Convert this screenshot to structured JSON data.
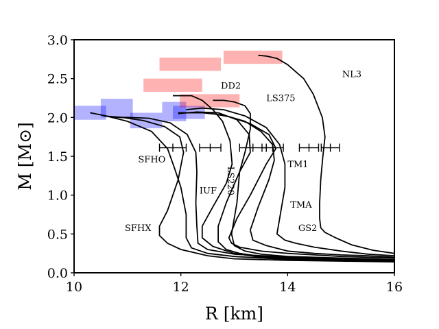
{
  "chart_data": {
    "type": "line",
    "title": "",
    "xlabel": "R [km]",
    "ylabel": "M [M⊙]",
    "xlim": [
      10,
      16
    ],
    "ylim": [
      0.0,
      3.0
    ],
    "x_ticks": [
      10,
      12,
      14,
      16
    ],
    "x_tick_labels": [
      "10",
      "12",
      "14",
      "16"
    ],
    "y_ticks": [
      0.0,
      0.5,
      1.0,
      1.5,
      2.0,
      2.5,
      3.0
    ],
    "y_tick_labels": [
      "0.0",
      "0.5",
      "1.0",
      "1.5",
      "2.0",
      "2.5",
      "3.0"
    ],
    "grid": false,
    "series": [
      {
        "name": "NL3",
        "label_pos": [
          15.02,
          2.52
        ],
        "label_rot": 0,
        "points": [
          [
            16.0,
            0.25
          ],
          [
            15.6,
            0.29
          ],
          [
            15.2,
            0.36
          ],
          [
            14.9,
            0.45
          ],
          [
            14.7,
            0.52
          ],
          [
            14.62,
            0.58
          ],
          [
            14.6,
            0.7
          ],
          [
            14.6,
            0.9
          ],
          [
            14.62,
            1.2
          ],
          [
            14.66,
            1.5
          ],
          [
            14.7,
            1.75
          ],
          [
            14.65,
            2.0
          ],
          [
            14.48,
            2.3
          ],
          [
            14.3,
            2.5
          ],
          [
            14.0,
            2.68
          ],
          [
            13.8,
            2.76
          ],
          [
            13.6,
            2.79
          ],
          [
            13.45,
            2.8
          ]
        ]
      },
      {
        "name": "GS2",
        "label_pos": [
          14.2,
          0.54
        ],
        "label_rot": 0,
        "points": [
          [
            16.0,
            0.22
          ],
          [
            15.5,
            0.24
          ],
          [
            15.0,
            0.28
          ],
          [
            14.5,
            0.33
          ],
          [
            14.15,
            0.38
          ],
          [
            13.95,
            0.42
          ],
          [
            13.8,
            0.5
          ],
          [
            13.85,
            0.7
          ],
          [
            13.95,
            1.1
          ],
          [
            13.95,
            1.4
          ],
          [
            13.85,
            1.65
          ],
          [
            13.6,
            1.87
          ],
          [
            13.2,
            2.02
          ],
          [
            12.8,
            2.1
          ],
          [
            12.4,
            2.12
          ],
          [
            12.1,
            2.1
          ]
        ]
      },
      {
        "name": "TMA",
        "label_pos": [
          14.05,
          0.84
        ],
        "label_rot": 0,
        "points": [
          [
            16.0,
            0.2
          ],
          [
            15.5,
            0.22
          ],
          [
            15.0,
            0.23
          ],
          [
            14.5,
            0.25
          ],
          [
            14.0,
            0.28
          ],
          [
            13.6,
            0.35
          ],
          [
            13.35,
            0.42
          ],
          [
            13.3,
            0.55
          ],
          [
            13.45,
            0.85
          ],
          [
            13.65,
            1.2
          ],
          [
            13.75,
            1.45
          ],
          [
            13.72,
            1.65
          ],
          [
            13.5,
            1.82
          ],
          [
            13.2,
            1.95
          ],
          [
            12.8,
            2.03
          ],
          [
            12.4,
            2.06
          ],
          [
            11.95,
            2.06
          ]
        ]
      },
      {
        "name": "TM1",
        "label_pos": [
          14.0,
          1.36
        ],
        "label_rot": 0,
        "points": [
          [
            16.0,
            0.19
          ],
          [
            15.5,
            0.2
          ],
          [
            15.0,
            0.21
          ],
          [
            14.5,
            0.23
          ],
          [
            14.0,
            0.25
          ],
          [
            13.5,
            0.28
          ],
          [
            13.1,
            0.33
          ],
          [
            12.95,
            0.38
          ],
          [
            12.9,
            0.45
          ],
          [
            13.05,
            0.7
          ],
          [
            13.3,
            1.0
          ],
          [
            13.6,
            1.4
          ],
          [
            13.78,
            1.6
          ],
          [
            13.65,
            1.78
          ],
          [
            13.3,
            1.92
          ],
          [
            12.9,
            2.01
          ],
          [
            12.5,
            2.06
          ],
          [
            12.1,
            2.06
          ]
        ]
      },
      {
        "name": "LS375",
        "label_pos": [
          13.6,
          2.21
        ],
        "label_rot": 0,
        "points": [
          [
            16.0,
            0.17
          ],
          [
            15.0,
            0.19
          ],
          [
            14.0,
            0.21
          ],
          [
            13.5,
            0.24
          ],
          [
            13.2,
            0.28
          ],
          [
            13.0,
            0.35
          ],
          [
            12.95,
            0.5
          ],
          [
            13.05,
            0.9
          ],
          [
            13.1,
            1.3
          ],
          [
            13.2,
            1.55
          ],
          [
            13.3,
            1.85
          ],
          [
            13.3,
            2.05
          ],
          [
            13.2,
            2.15
          ],
          [
            13.0,
            2.2
          ],
          [
            12.8,
            2.22
          ],
          [
            12.6,
            2.22
          ]
        ]
      },
      {
        "name": "DD2",
        "label_pos": [
          12.75,
          2.37
        ],
        "label_rot": 0,
        "points": [
          [
            16.0,
            0.15
          ],
          [
            15.0,
            0.16
          ],
          [
            14.0,
            0.18
          ],
          [
            13.5,
            0.2
          ],
          [
            13.0,
            0.25
          ],
          [
            12.6,
            0.34
          ],
          [
            12.4,
            0.45
          ],
          [
            12.4,
            0.6
          ],
          [
            12.6,
            0.85
          ],
          [
            12.85,
            1.15
          ],
          [
            12.96,
            1.4
          ],
          [
            12.92,
            1.7
          ],
          [
            12.78,
            1.95
          ],
          [
            12.6,
            2.1
          ],
          [
            12.4,
            2.22
          ],
          [
            12.2,
            2.28
          ],
          [
            12.0,
            2.28
          ],
          [
            11.85,
            2.28
          ]
        ]
      },
      {
        "name": "LS220",
        "label_pos": [
          12.88,
          1.37
        ],
        "label_rot": 90,
        "points": [
          [
            16.0,
            0.16
          ],
          [
            15.0,
            0.17
          ],
          [
            14.0,
            0.19
          ],
          [
            13.5,
            0.21
          ],
          [
            13.1,
            0.25
          ],
          [
            12.85,
            0.3
          ],
          [
            12.7,
            0.4
          ],
          [
            12.7,
            0.6
          ],
          [
            12.85,
            0.9
          ],
          [
            13.1,
            1.3
          ],
          [
            13.3,
            1.55
          ],
          [
            13.28,
            1.78
          ],
          [
            13.05,
            1.97
          ],
          [
            12.7,
            2.06
          ],
          [
            12.3,
            2.07
          ],
          [
            11.95,
            2.05
          ]
        ]
      },
      {
        "name": "IUF",
        "label_pos": [
          12.35,
          1.02
        ],
        "label_rot": 0,
        "points": [
          [
            16.0,
            0.17
          ],
          [
            15.0,
            0.18
          ],
          [
            14.0,
            0.2
          ],
          [
            13.0,
            0.24
          ],
          [
            12.5,
            0.3
          ],
          [
            12.32,
            0.38
          ],
          [
            12.3,
            0.6
          ],
          [
            12.28,
            0.9
          ],
          [
            12.3,
            1.3
          ],
          [
            12.28,
            1.55
          ],
          [
            12.12,
            1.78
          ],
          [
            11.8,
            1.93
          ],
          [
            11.4,
            1.99
          ],
          [
            11.0,
            2.0
          ],
          [
            10.7,
            2.0
          ]
        ]
      },
      {
        "name": "SFHO",
        "label_pos": [
          11.2,
          1.42
        ],
        "label_rot": 0,
        "points": [
          [
            16.0,
            0.15
          ],
          [
            15.0,
            0.16
          ],
          [
            14.0,
            0.17
          ],
          [
            13.0,
            0.21
          ],
          [
            12.5,
            0.25
          ],
          [
            12.2,
            0.32
          ],
          [
            12.1,
            0.45
          ],
          [
            12.1,
            0.75
          ],
          [
            12.0,
            1.1
          ],
          [
            11.88,
            1.35
          ],
          [
            11.75,
            1.6
          ],
          [
            11.45,
            1.82
          ],
          [
            11.0,
            1.95
          ],
          [
            10.6,
            2.02
          ],
          [
            10.3,
            2.06
          ]
        ]
      },
      {
        "name": "SFHX",
        "label_pos": [
          10.95,
          0.54
        ],
        "label_rot": 0,
        "points": [
          [
            16.0,
            0.14
          ],
          [
            15.0,
            0.15
          ],
          [
            14.0,
            0.16
          ],
          [
            13.0,
            0.18
          ],
          [
            12.5,
            0.22
          ],
          [
            12.0,
            0.3
          ],
          [
            11.75,
            0.38
          ],
          [
            11.6,
            0.48
          ],
          [
            11.6,
            0.6
          ],
          [
            11.75,
            0.8
          ],
          [
            11.95,
            1.2
          ],
          [
            12.05,
            1.55
          ],
          [
            11.98,
            1.75
          ],
          [
            11.7,
            1.88
          ],
          [
            11.3,
            1.96
          ],
          [
            10.9,
            2.0
          ],
          [
            10.55,
            2.02
          ]
        ]
      }
    ],
    "shaded_regions": [
      {
        "color": "#0000ff",
        "x": [
          10.0,
          10.6
        ],
        "y": [
          1.97,
          2.15
        ]
      },
      {
        "color": "#0000ff",
        "x": [
          10.5,
          11.1
        ],
        "y": [
          2.0,
          2.24
        ]
      },
      {
        "color": "#0000ff",
        "x": [
          11.05,
          11.65
        ],
        "y": [
          1.86,
          2.06
        ]
      },
      {
        "color": "#0000ff",
        "x": [
          11.65,
          12.1
        ],
        "y": [
          1.95,
          2.2
        ]
      },
      {
        "color": "#0000ff",
        "x": [
          11.85,
          12.45
        ],
        "y": [
          1.98,
          2.15
        ]
      },
      {
        "color": "#ff0000",
        "x": [
          11.6,
          12.75
        ],
        "y": [
          2.6,
          2.77
        ]
      },
      {
        "color": "#ff0000",
        "x": [
          12.8,
          13.9
        ],
        "y": [
          2.69,
          2.86
        ]
      },
      {
        "color": "#ff0000",
        "x": [
          11.3,
          12.4
        ],
        "y": [
          2.33,
          2.5
        ]
      },
      {
        "color": "#ff0000",
        "x": [
          11.98,
          13.1
        ],
        "y": [
          2.13,
          2.3
        ]
      }
    ],
    "errorbars": [
      {
        "y": 1.61,
        "x": 11.85,
        "xerr": 0.25
      },
      {
        "y": 1.61,
        "x": 12.55,
        "xerr": 0.2
      },
      {
        "y": 1.61,
        "x": 13.35,
        "xerr": 0.25
      },
      {
        "y": 1.61,
        "x": 13.72,
        "xerr": 0.2
      },
      {
        "y": 1.61,
        "x": 14.4,
        "xerr": 0.18
      },
      {
        "y": 1.61,
        "x": 14.8,
        "xerr": 0.17
      }
    ]
  }
}
